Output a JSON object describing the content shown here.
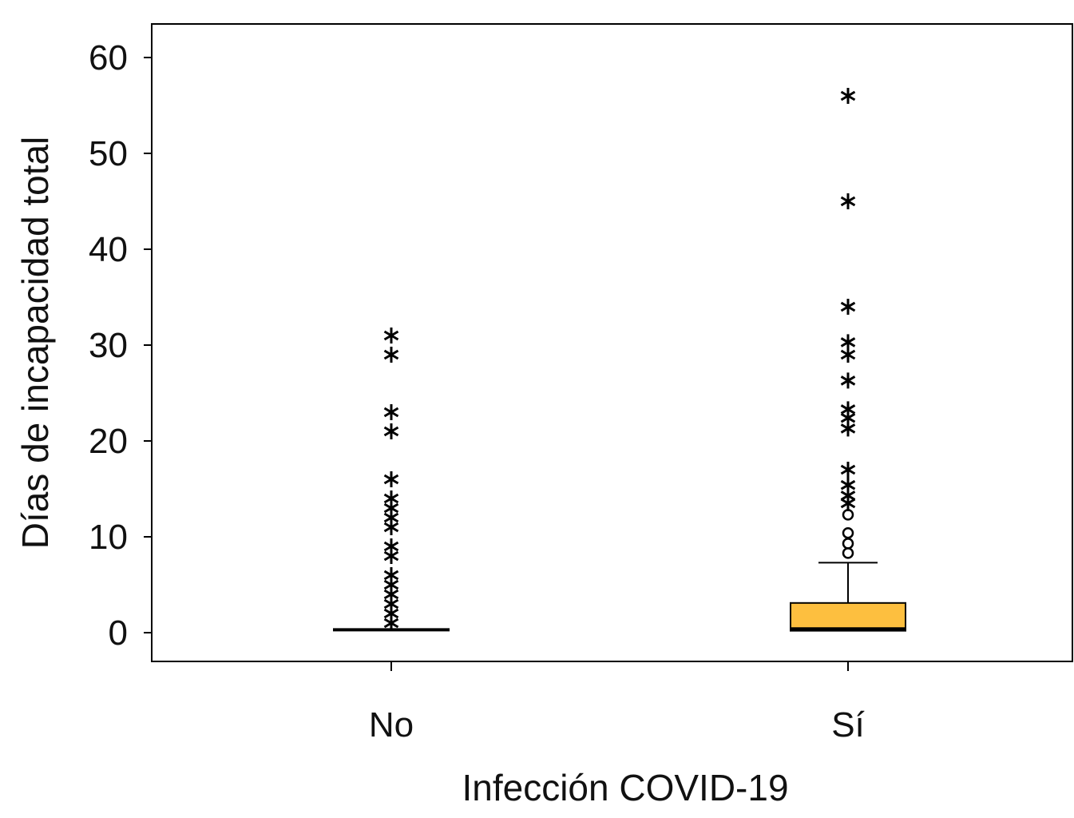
{
  "chart_data": {
    "type": "box",
    "xlabel": "Infección COVID-19",
    "ylabel": "Días de incapacidad total",
    "categories": [
      "No",
      "Sí"
    ],
    "ylim": [
      -3,
      63.5
    ],
    "yticks": [
      0,
      10,
      20,
      30,
      40,
      50,
      60
    ],
    "grid": false,
    "box_color": "#FDBF3F",
    "boxes": [
      {
        "category": "No",
        "q1": 0.3,
        "median": 0.3,
        "q3": 0.3,
        "whisker_low": 0.3,
        "whisker_high": 0.3,
        "mild_outliers": [],
        "extreme_outliers": [
          31,
          29,
          23,
          21,
          16,
          14,
          13,
          12,
          11,
          9,
          8,
          6,
          5,
          4,
          3,
          2,
          1
        ]
      },
      {
        "category": "Sí",
        "q1": 0.2,
        "median": 0.4,
        "q3": 3.1,
        "whisker_low": 0.2,
        "whisker_high": 7.3,
        "mild_outliers": [
          12.3,
          10.4,
          9.3,
          8.3
        ],
        "extreme_outliers": [
          56,
          45,
          34,
          30.3,
          29,
          26.3,
          23.3,
          22.4,
          21.3,
          17,
          15.4,
          14.3,
          13.5
        ]
      }
    ]
  }
}
